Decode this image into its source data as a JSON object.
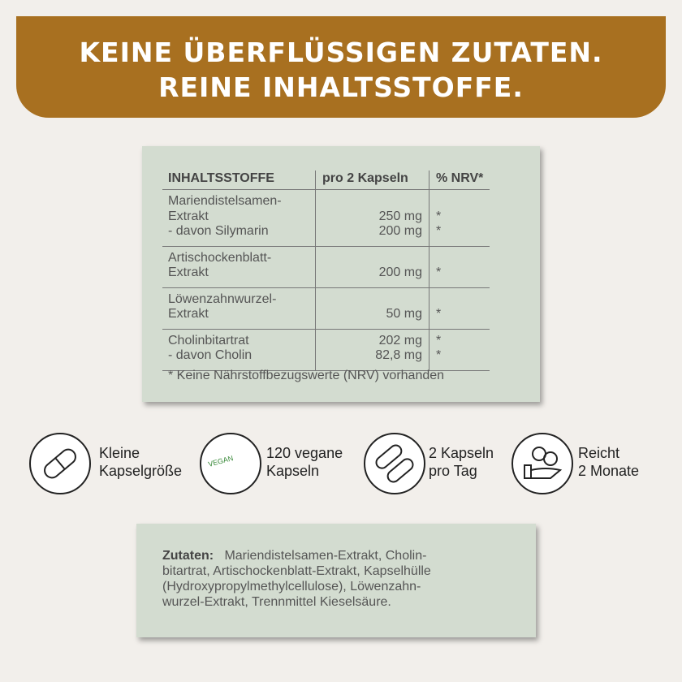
{
  "header": {
    "lines": [
      "KEINE ÜBERFLÜSSIGEN ZUTATEN.",
      "REINE INHALTSSTOFFE."
    ]
  },
  "table": {
    "headers": [
      "INHALTSSTOFFE",
      "pro 2 Kapseln",
      "% NRV*"
    ],
    "rows": [
      {
        "name": [
          "Mariendistelsamen-",
          "Extrakt",
          "- davon Silymarin"
        ],
        "amount": [
          "250 mg",
          "200 mg"
        ],
        "nrv": [
          "*",
          "*"
        ]
      },
      {
        "name": [
          "Artischockenblatt-",
          "Extrakt"
        ],
        "amount": [
          "200 mg"
        ],
        "nrv": [
          "*"
        ]
      },
      {
        "name": [
          "Löwenzahnwurzel-",
          "Extrakt"
        ],
        "amount": [
          "50 mg"
        ],
        "nrv": [
          "*"
        ]
      },
      {
        "name": [
          "Cholinbitartrat",
          "- davon Cholin"
        ],
        "amount": [
          "202 mg",
          "82,8 mg"
        ],
        "nrv": [
          "*",
          "*"
        ]
      }
    ],
    "footnote": "* Keine Nährstoffbezugswerte (NRV) vorhanden"
  },
  "features": [
    {
      "lines": [
        "Kleine",
        "Kapselgröße"
      ]
    },
    {
      "icon_text": "VEGAN",
      "lines": [
        "120 vegane",
        "Kapseln"
      ]
    },
    {
      "lines": [
        "2 Kapseln",
        "pro Tag"
      ]
    },
    {
      "lines": [
        "Reicht",
        "2 Monate"
      ]
    }
  ],
  "ingredients": {
    "label": "Zutaten:",
    "lines": [
      " Mariendistelsamen-Extrakt, Cholin-",
      "bitartrat, Artischockenblatt-Extrakt, Kapselhülle",
      "(Hydroxypropylmethylcellulose), Löwenzahn-",
      "wurzel-Extrakt, Trennmittel Kieselsäure."
    ]
  }
}
